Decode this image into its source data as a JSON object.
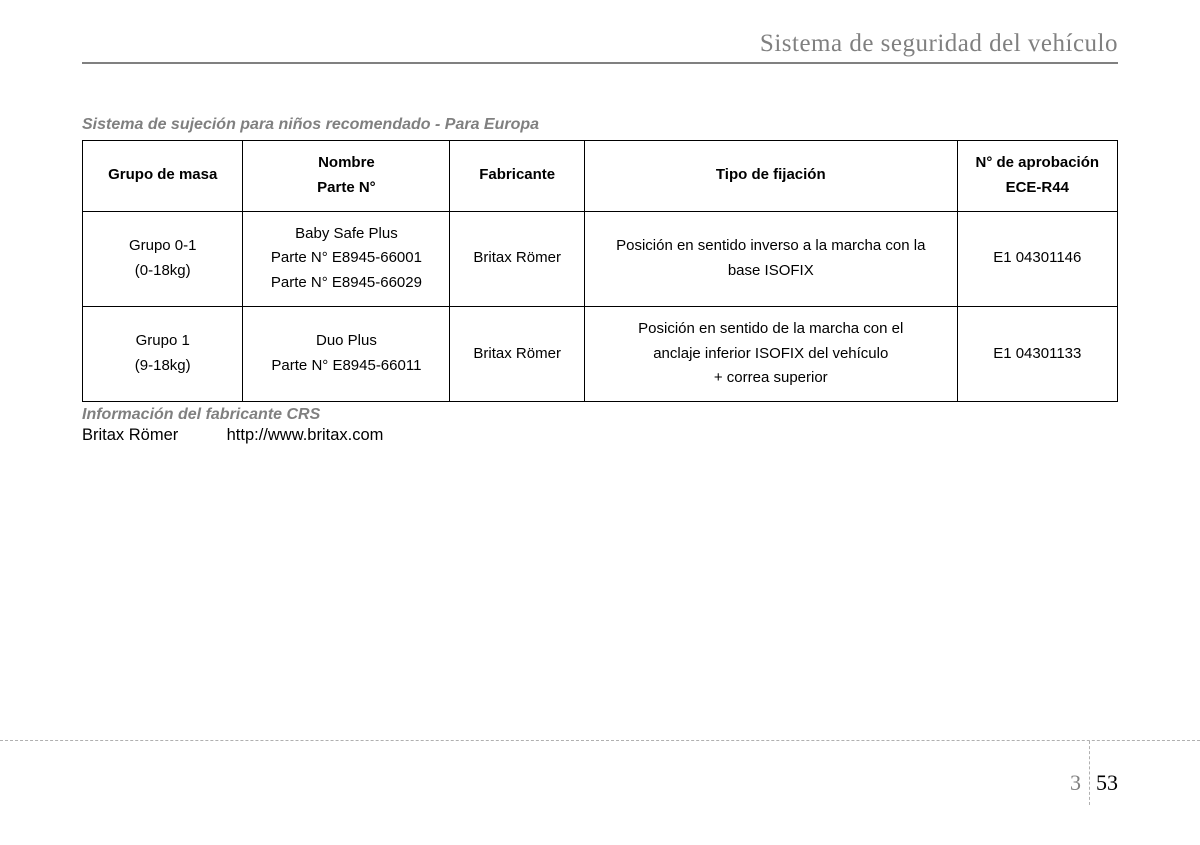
{
  "header": {
    "title": "Sistema de seguridad del vehículo"
  },
  "section": {
    "title": "Sistema de sujeción para niños recomendado - Para Europa"
  },
  "table": {
    "columns": {
      "mass": "Grupo de masa",
      "name_line1": "Nombre",
      "name_line2": "Parte N°",
      "manufacturer": "Fabricante",
      "fixation": "Tipo de fijación",
      "approval_line1": "N° de aprobación",
      "approval_line2": "ECE-R44"
    },
    "rows": [
      {
        "mass_line1": "Grupo 0-1",
        "mass_line2": "(0-18kg)",
        "name_line1": "Baby Safe Plus",
        "name_line2": "Parte N° E8945-66001",
        "name_line3": "Parte N° E8945-66029",
        "manufacturer": "Britax Römer",
        "fixation_line1": "Posición en sentido inverso a la marcha con la",
        "fixation_line2": "base ISOFIX",
        "fixation_line3": "",
        "approval": "E1 04301146"
      },
      {
        "mass_line1": "Grupo 1",
        "mass_line2": "(9-18kg)",
        "name_line1": "Duo Plus",
        "name_line2": "Parte N° E8945-66011",
        "name_line3": "",
        "manufacturer": "Britax Römer",
        "fixation_line1": "Posición en sentido de la marcha con el",
        "fixation_line2": "anclaje inferior ISOFIX del vehículo",
        "fixation_line3": "+ correa superior",
        "approval": "E1 04301133"
      }
    ]
  },
  "crs_info": {
    "title": "Información del fabricante CRS",
    "manufacturer": "Britax Römer",
    "url": "http://www.britax.com"
  },
  "footer": {
    "chapter": "3",
    "page": "53"
  },
  "colors": {
    "header_gray": "#808080",
    "text": "#000000",
    "border": "#000000",
    "dashed": "#b0b0b0",
    "background": "#ffffff"
  },
  "typography": {
    "header_fontsize": 25,
    "section_title_fontsize": 16,
    "table_fontsize": 15,
    "body_fontsize": 16.5,
    "footer_fontsize": 22
  }
}
